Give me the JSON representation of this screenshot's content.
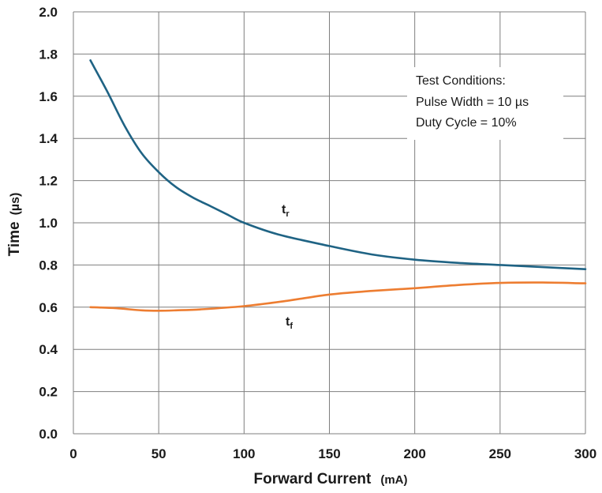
{
  "chart_data": {
    "type": "line",
    "title": "",
    "xlabel": "Forward Current",
    "xlabel_unit": "(mA)",
    "ylabel": "Time",
    "ylabel_unit": "(µs)",
    "xlim": [
      0,
      300
    ],
    "ylim": [
      0,
      2.0
    ],
    "xticks": [
      "0",
      "50",
      "100",
      "150",
      "200",
      "250",
      "300"
    ],
    "yticks": [
      "0.0",
      "0.2",
      "0.4",
      "0.6",
      "0.8",
      "1.0",
      "1.2",
      "1.4",
      "1.6",
      "1.8",
      "2.0"
    ],
    "grid": true,
    "legend": null,
    "series": [
      {
        "name": "t",
        "subscript": "r",
        "color": "#1f6384",
        "x": [
          10,
          20,
          30,
          40,
          50,
          60,
          70,
          80,
          90,
          100,
          120,
          150,
          175,
          200,
          225,
          250,
          275,
          300
        ],
        "y": [
          1.77,
          1.62,
          1.46,
          1.33,
          1.24,
          1.17,
          1.12,
          1.08,
          1.04,
          1.0,
          0.945,
          0.89,
          0.85,
          0.825,
          0.81,
          0.8,
          0.79,
          0.78
        ]
      },
      {
        "name": "t",
        "subscript": "f",
        "color": "#ed7d31",
        "x": [
          10,
          25,
          40,
          50,
          60,
          75,
          100,
          125,
          150,
          175,
          200,
          225,
          250,
          275,
          300
        ],
        "y": [
          0.6,
          0.595,
          0.585,
          0.583,
          0.585,
          0.59,
          0.605,
          0.63,
          0.66,
          0.677,
          0.69,
          0.705,
          0.715,
          0.717,
          0.713
        ]
      }
    ],
    "annotation": {
      "lines": [
        "Test Conditions:",
        "Pulse Width = 10 µs",
        "Duty Cycle = 10%"
      ]
    }
  }
}
